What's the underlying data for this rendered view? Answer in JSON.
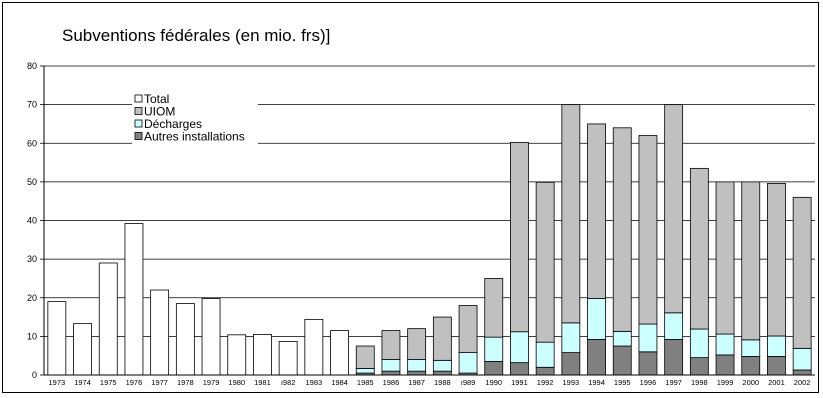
{
  "chart_data": {
    "type": "bar",
    "title": "Subventions fédérales (en mio. frs)]",
    "xlabel": "",
    "ylabel": "",
    "ylim": [
      0,
      80
    ],
    "y_ticks": [
      "0",
      "10",
      "20",
      "30",
      "40",
      "50",
      "60",
      "70",
      "80"
    ],
    "grid": true,
    "legend_position": "top-left",
    "categories": [
      "1973",
      "1974",
      "1975",
      "1976",
      "1977",
      "1978",
      "1979",
      "1980",
      "1981",
      "1982",
      "1983",
      "1984",
      "1985",
      "1986",
      "1987",
      "1988",
      "1989",
      "1990",
      "1991",
      "1992",
      "1993",
      "1994",
      "1995",
      "1996",
      "1997",
      "1998",
      "1999",
      "2000",
      "2001",
      "2002"
    ],
    "x_tick_labels": [
      "1973",
      "1974",
      "1975",
      "1976",
      "1977",
      "1978",
      "1979",
      "1980",
      "1981",
      "ı982",
      "1983",
      "1984",
      "1985",
      "1986",
      "1987",
      "1988",
      "ı989",
      "1990",
      "1991",
      "1992",
      "1993",
      "1994",
      "1995",
      "1996",
      "1997",
      "1998",
      "1999",
      "2000",
      "2001",
      "2002"
    ],
    "series": [
      {
        "name": "Total",
        "color": "#ffffff",
        "values": [
          19,
          13.3,
          29,
          39.2,
          22,
          18.5,
          19.8,
          10.4,
          10.5,
          8.7,
          14.4,
          11.5,
          0,
          0,
          0,
          0,
          0,
          0,
          0,
          0,
          0,
          0,
          0,
          0,
          0,
          0,
          0,
          0,
          0,
          0
        ]
      },
      {
        "name": "Autres installations",
        "color": "#808080",
        "values": [
          0,
          0,
          0,
          0,
          0,
          0,
          0,
          0,
          0,
          0,
          0,
          0,
          0.5,
          1,
          1,
          1,
          0.5,
          3.5,
          3.2,
          2,
          5.8,
          9.2,
          7.5,
          6,
          9.2,
          4.5,
          5.2,
          4.8,
          4.8,
          1.3
        ]
      },
      {
        "name": "Décharges",
        "color": "#ccffff",
        "values": [
          0,
          0,
          0,
          0,
          0,
          0,
          0,
          0,
          0,
          0,
          0,
          0,
          1.2,
          3,
          3,
          2.8,
          5.3,
          6.3,
          8,
          6.5,
          7.7,
          10.6,
          3.8,
          7.2,
          6.9,
          7.4,
          5.4,
          4.3,
          5.3,
          5.6
        ]
      },
      {
        "name": "UIOM",
        "color": "#c0c0c0",
        "values": [
          0,
          0,
          0,
          0,
          0,
          0,
          0,
          0,
          0,
          0,
          0,
          0,
          5.8,
          7.5,
          8,
          11.2,
          12.2,
          15.2,
          49,
          41.4,
          56.5,
          45.2,
          52.7,
          48.8,
          53.9,
          41.6,
          39.4,
          40.9,
          39.5,
          39.1
        ]
      }
    ]
  }
}
